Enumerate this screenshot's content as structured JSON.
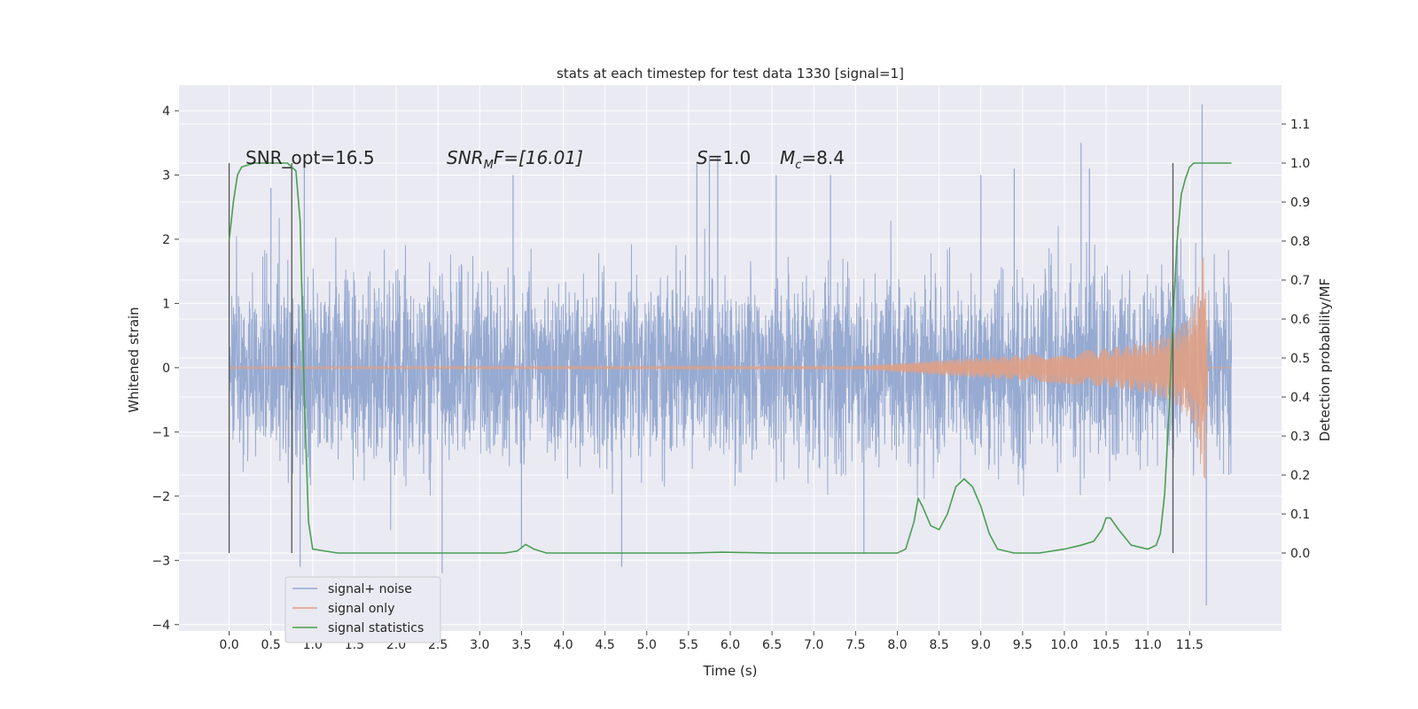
{
  "chart_data": {
    "type": "line",
    "title": "stats at each timestep for test data 1330 [signal=1]",
    "xlabel": "Time (s)",
    "ylabel": "Whitened strain",
    "ylabel_right": "Detection probability/MF",
    "xlim": [
      -0.6,
      12.6
    ],
    "ylim": [
      -4.1,
      4.4
    ],
    "ylim_right": [
      -0.2,
      1.2
    ],
    "x_ticks": [
      "0.0",
      "0.5",
      "1.0",
      "1.5",
      "2.0",
      "2.5",
      "3.0",
      "3.5",
      "4.0",
      "4.5",
      "5.0",
      "5.5",
      "6.0",
      "6.5",
      "7.0",
      "7.5",
      "8.0",
      "8.5",
      "9.0",
      "9.5",
      "10.0",
      "10.5",
      "11.0",
      "11.5"
    ],
    "y_ticks": [
      "−4",
      "−3",
      "−2",
      "−1",
      "0",
      "1",
      "2",
      "3",
      "4"
    ],
    "y_ticks_right": [
      "0.0",
      "0.1",
      "0.2",
      "0.3",
      "0.4",
      "0.5",
      "0.6",
      "0.7",
      "0.8",
      "0.9",
      "1.0",
      "1.1"
    ],
    "grid": true,
    "legend_position": "lower-left",
    "annotations": {
      "snr_opt": "SNR_opt=16.5",
      "snr_mf": {
        "base": "SNR",
        "sub": "M",
        "tail": "F=[16.01]"
      },
      "s": {
        "sym": "S",
        "tail": "=1.0"
      },
      "mc": {
        "sym": "M",
        "sub": "c",
        "tail": "=8.4"
      }
    },
    "vertical_markers": [
      0.0,
      0.75,
      11.3
    ],
    "series": [
      {
        "name": "signal+ noise",
        "color": "#92a6cf",
        "x_range": [
          0.0,
          12.0
        ],
        "envelope": {
          "x": [
            0,
            11.8,
            12.0
          ],
          "typical_abs": [
            1.4,
            1.4,
            1.6
          ],
          "peak_abs": [
            3.0,
            3.1,
            1.9
          ]
        },
        "spikes": [
          {
            "x": 0.5,
            "y": 2.8
          },
          {
            "x": 0.9,
            "y": 3.1
          },
          {
            "x": 0.85,
            "y": -3.1
          },
          {
            "x": 2.55,
            "y": -3.2
          },
          {
            "x": 3.4,
            "y": 3.0
          },
          {
            "x": 3.5,
            "y": -2.8
          },
          {
            "x": 4.7,
            "y": -3.1
          },
          {
            "x": 5.6,
            "y": 3.2
          },
          {
            "x": 5.75,
            "y": 3.3
          },
          {
            "x": 5.85,
            "y": 3.3
          },
          {
            "x": 6.55,
            "y": 3.0
          },
          {
            "x": 7.2,
            "y": 3.0
          },
          {
            "x": 7.6,
            "y": -2.9
          },
          {
            "x": 9.0,
            "y": 3.0
          },
          {
            "x": 9.4,
            "y": 3.1
          },
          {
            "x": 10.2,
            "y": 3.5
          },
          {
            "x": 10.3,
            "y": 3.1
          },
          {
            "x": 11.65,
            "y": 4.1
          },
          {
            "x": 11.7,
            "y": -3.7
          }
        ]
      },
      {
        "name": "signal only",
        "color": "#e0a084",
        "x": [
          0.0,
          7.5,
          8.5,
          9.5,
          10.5,
          11.0,
          11.3,
          11.5,
          11.6,
          11.65,
          11.68,
          11.72,
          12.0
        ],
        "amplitude": [
          0.02,
          0.02,
          0.12,
          0.2,
          0.3,
          0.4,
          0.55,
          0.8,
          1.2,
          1.7,
          2.0,
          0.0,
          0.0
        ]
      },
      {
        "name": "signal statistics",
        "color": "#4a9e52",
        "axis": "right",
        "x": [
          0.0,
          0.05,
          0.1,
          0.15,
          0.3,
          0.5,
          0.7,
          0.75,
          0.8,
          0.85,
          0.9,
          0.95,
          1.0,
          1.3,
          2.0,
          3.0,
          3.3,
          3.45,
          3.55,
          3.65,
          3.8,
          4.5,
          5.5,
          5.9,
          6.5,
          7.5,
          8.0,
          8.1,
          8.2,
          8.25,
          8.3,
          8.4,
          8.5,
          8.6,
          8.7,
          8.8,
          8.9,
          9.0,
          9.1,
          9.2,
          9.4,
          9.7,
          10.0,
          10.2,
          10.35,
          10.45,
          10.5,
          10.55,
          10.65,
          10.8,
          11.0,
          11.1,
          11.15,
          11.2,
          11.25,
          11.3,
          11.35,
          11.4,
          11.45,
          11.5,
          11.55,
          11.6,
          11.7,
          12.0
        ],
        "y": [
          0.8,
          0.9,
          0.97,
          0.99,
          1.0,
          1.0,
          1.0,
          0.99,
          0.98,
          0.85,
          0.4,
          0.08,
          0.01,
          0.0,
          0.0,
          0.0,
          0.0,
          0.005,
          0.022,
          0.01,
          0.0,
          0.0,
          0.0,
          0.002,
          0.0,
          0.0,
          0.0,
          0.01,
          0.08,
          0.14,
          0.12,
          0.07,
          0.06,
          0.1,
          0.17,
          0.19,
          0.17,
          0.12,
          0.05,
          0.01,
          0.0,
          0.0,
          0.01,
          0.02,
          0.03,
          0.06,
          0.09,
          0.09,
          0.06,
          0.02,
          0.01,
          0.02,
          0.05,
          0.15,
          0.35,
          0.6,
          0.8,
          0.92,
          0.96,
          0.99,
          1.0,
          1.0,
          1.0,
          1.0
        ]
      }
    ]
  },
  "legend": [
    {
      "label": "signal+ noise",
      "color": "#92a6cf"
    },
    {
      "label": "signal only",
      "color": "#e0a084"
    },
    {
      "label": "signal statistics",
      "color": "#4a9e52"
    }
  ]
}
